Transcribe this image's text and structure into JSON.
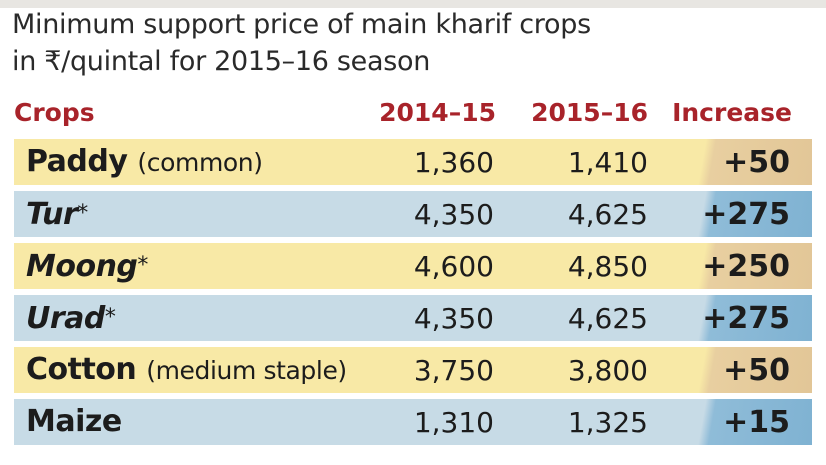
{
  "title": {
    "line1": "Minimum support price of main kharif crops",
    "line2": "in ₹/quintal for 2015–16 season"
  },
  "colors": {
    "header_text": "#a8232a",
    "row_yellow": "#f8e9a6",
    "row_blue": "#c7dbe6",
    "increase_yellow": "#e2c697",
    "increase_blue": "#7fb2d2"
  },
  "chart_data": {
    "type": "table",
    "title": "Minimum support price of main kharif crops in ₹/quintal for 2015–16 season",
    "columns": [
      "Crops",
      "2014–15",
      "2015–16",
      "Increase"
    ],
    "rows": [
      {
        "crop": "Paddy",
        "note": "(common)",
        "italic": false,
        "star": "",
        "y2014_15": "1,360",
        "y2015_16": "1,410",
        "increase": "+50"
      },
      {
        "crop": "Tur",
        "note": "",
        "italic": true,
        "star": "*",
        "y2014_15": "4,350",
        "y2015_16": "4,625",
        "increase": "+275"
      },
      {
        "crop": "Moong",
        "note": "",
        "italic": true,
        "star": "*",
        "y2014_15": "4,600",
        "y2015_16": "4,850",
        "increase": "+250"
      },
      {
        "crop": "Urad",
        "note": "",
        "italic": true,
        "star": "*",
        "y2014_15": "4,350",
        "y2015_16": "4,625",
        "increase": "+275"
      },
      {
        "crop": "Cotton",
        "note": "(medium staple)",
        "italic": false,
        "star": "",
        "y2014_15": "3,750",
        "y2015_16": "3,800",
        "increase": "+50"
      },
      {
        "crop": "Maize",
        "note": "",
        "italic": false,
        "star": "",
        "y2014_15": "1,310",
        "y2015_16": "1,325",
        "increase": "+15"
      }
    ]
  }
}
